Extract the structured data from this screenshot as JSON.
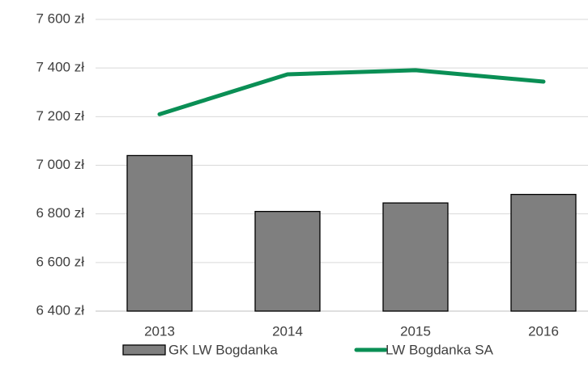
{
  "chart_data": {
    "type": "bar",
    "categories": [
      "2013",
      "2014",
      "2015",
      "2016"
    ],
    "series": [
      {
        "name": "GK LW Bogdanka",
        "type": "bar",
        "color": "#7f7f7f",
        "values": [
          7040,
          6810,
          6845,
          6880
        ]
      },
      {
        "name": "LW Bogdanka SA",
        "type": "line",
        "color": "#0a8f55",
        "values": [
          7210,
          7374,
          7391,
          7344
        ]
      }
    ],
    "ylim": [
      6400,
      7600
    ],
    "yticks": [
      {
        "value": 6400,
        "label": "6 400 zł"
      },
      {
        "value": 6600,
        "label": "6 600 zł"
      },
      {
        "value": 6800,
        "label": "6 800 zł"
      },
      {
        "value": 7000,
        "label": "7 000 zł"
      },
      {
        "value": 7200,
        "label": "7 200 zł"
      },
      {
        "value": 7400,
        "label": "7 400 zł"
      },
      {
        "value": 7600,
        "label": "7 600 zł"
      }
    ],
    "grid": true,
    "legend": "bottom"
  }
}
